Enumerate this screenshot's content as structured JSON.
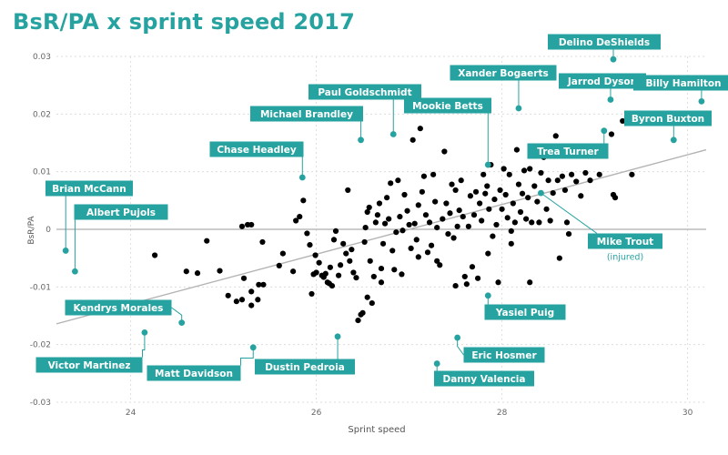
{
  "colors": {
    "accent": "#26a3a0",
    "point": "#000000",
    "trend": "#b3b3b3",
    "zero_line": "#999999",
    "grid": "#dcdcdc"
  },
  "chart_data": {
    "type": "scatter",
    "title": "BsR/PA x sprint speed 2017",
    "xlabel": "Sprint speed",
    "ylabel": "BsR/PA",
    "xlim": [
      23.2,
      30.2
    ],
    "ylim": [
      -0.03,
      0.03
    ],
    "x_ticks": [
      24,
      26,
      28,
      30
    ],
    "y_ticks": [
      {
        "v": 0.03,
        "label": "0.03"
      },
      {
        "v": 0.02,
        "label": "0.02"
      },
      {
        "v": 0.01,
        "label": "0.01"
      },
      {
        "v": 0,
        "label": "0"
      },
      {
        "v": -0.01,
        "label": "-0.01"
      },
      {
        "v": -0.02,
        "label": "-0.02"
      },
      {
        "v": -0.03,
        "label": "-0.03"
      }
    ],
    "grid": true,
    "trendline": {
      "x": [
        23.2,
        30.2
      ],
      "y": [
        -0.0164,
        0.0138
      ]
    },
    "highlighted": [
      {
        "name": "Brian McCann",
        "x": 23.3,
        "y": -0.0037
      },
      {
        "name": "Albert Pujols",
        "x": 23.4,
        "y": -0.0073
      },
      {
        "name": "Kendrys Morales",
        "x": 24.55,
        "y": -0.0162
      },
      {
        "name": "Victor Martinez",
        "x": 24.15,
        "y": -0.0179
      },
      {
        "name": "Matt Davidson",
        "x": 25.32,
        "y": -0.0205
      },
      {
        "name": "Dustin Pedroia",
        "x": 26.23,
        "y": -0.0186
      },
      {
        "name": "Chase Headley",
        "x": 25.85,
        "y": 0.009
      },
      {
        "name": "Michael Brandley",
        "x": 26.48,
        "y": 0.0155
      },
      {
        "name": "Paul Goldschmidt",
        "x": 26.83,
        "y": 0.0165
      },
      {
        "name": "Mookie Betts",
        "x": 27.85,
        "y": 0.0112
      },
      {
        "name": "Xander Bogaerts",
        "x": 28.18,
        "y": 0.021
      },
      {
        "name": "Delino DeShields",
        "x": 29.2,
        "y": 0.0295
      },
      {
        "name": "Jarrod Dyson",
        "x": 29.17,
        "y": 0.0225
      },
      {
        "name": "Billy Hamilton",
        "x": 30.15,
        "y": 0.0222
      },
      {
        "name": "Byron Buxton",
        "x": 29.85,
        "y": 0.0155
      },
      {
        "name": "Trea Turner",
        "x": 29.1,
        "y": 0.0171
      },
      {
        "name": "Mike Trout",
        "note": "(injured)",
        "x": 28.42,
        "y": 0.0063
      },
      {
        "name": "Yasiel Puig",
        "x": 27.85,
        "y": -0.0115
      },
      {
        "name": "Eric Hosmer",
        "x": 27.52,
        "y": -0.0188
      },
      {
        "name": "Danny Valencia",
        "x": 27.3,
        "y": -0.0233
      }
    ],
    "points": [
      [
        24.26,
        -0.0045
      ],
      [
        24.6,
        -0.0073
      ],
      [
        24.72,
        -0.0076
      ],
      [
        24.82,
        -0.002
      ],
      [
        24.96,
        -0.0072
      ],
      [
        25.05,
        -0.0115
      ],
      [
        25.14,
        -0.0125
      ],
      [
        25.2,
        -0.0122
      ],
      [
        25.3,
        -0.0132
      ],
      [
        25.37,
        -0.0122
      ],
      [
        25.22,
        -0.0085
      ],
      [
        25.38,
        -0.0096
      ],
      [
        25.43,
        -0.0096
      ],
      [
        25.3,
        -0.0108
      ],
      [
        25.2,
        0.0005
      ],
      [
        25.26,
        0.0008
      ],
      [
        25.3,
        0.0008
      ],
      [
        25.42,
        -0.0022
      ],
      [
        25.6,
        -0.0063
      ],
      [
        25.64,
        -0.0042
      ],
      [
        25.75,
        -0.0073
      ],
      [
        25.78,
        0.0015
      ],
      [
        25.82,
        0.0022
      ],
      [
        25.86,
        0.005
      ],
      [
        25.9,
        -0.0007
      ],
      [
        25.93,
        -0.0027
      ],
      [
        25.97,
        -0.0078
      ],
      [
        25.99,
        -0.0045
      ],
      [
        26.0,
        -0.0075
      ],
      [
        26.03,
        -0.0058
      ],
      [
        26.06,
        -0.008
      ],
      [
        26.08,
        -0.0083
      ],
      [
        26.1,
        -0.0077
      ],
      [
        26.12,
        -0.0092
      ],
      [
        26.14,
        -0.0094
      ],
      [
        26.15,
        -0.0066
      ],
      [
        26.17,
        -0.0098
      ],
      [
        26.19,
        -0.0018
      ],
      [
        26.21,
        -0.0003
      ],
      [
        26.24,
        -0.008
      ],
      [
        26.26,
        -0.0062
      ],
      [
        26.29,
        -0.0025
      ],
      [
        26.32,
        -0.0042
      ],
      [
        26.34,
        0.0068
      ],
      [
        26.36,
        -0.0055
      ],
      [
        26.38,
        -0.0035
      ],
      [
        26.4,
        -0.0075
      ],
      [
        26.43,
        -0.0084
      ],
      [
        26.45,
        -0.0158
      ],
      [
        26.48,
        -0.0148
      ],
      [
        26.5,
        -0.0145
      ],
      [
        26.52,
        -0.0022
      ],
      [
        26.53,
        0.0003
      ],
      [
        26.55,
        0.003
      ],
      [
        26.57,
        0.0038
      ],
      [
        26.58,
        -0.0055
      ],
      [
        26.6,
        -0.0128
      ],
      [
        26.62,
        -0.0082
      ],
      [
        26.64,
        0.0012
      ],
      [
        26.66,
        0.0025
      ],
      [
        26.68,
        0.0045
      ],
      [
        26.7,
        -0.0068
      ],
      [
        26.72,
        -0.0025
      ],
      [
        26.74,
        0.001
      ],
      [
        26.76,
        0.0055
      ],
      [
        26.78,
        0.0018
      ],
      [
        26.8,
        0.008
      ],
      [
        26.82,
        -0.0037
      ],
      [
        26.84,
        -0.007
      ],
      [
        26.86,
        -0.0005
      ],
      [
        26.88,
        0.0085
      ],
      [
        26.9,
        0.0022
      ],
      [
        26.93,
        -0.0002
      ],
      [
        26.95,
        0.006
      ],
      [
        26.98,
        0.0032
      ],
      [
        27.0,
        0.0008
      ],
      [
        27.02,
        -0.0033
      ],
      [
        27.04,
        0.0155
      ],
      [
        27.06,
        0.001
      ],
      [
        27.08,
        -0.0018
      ],
      [
        27.1,
        0.0042
      ],
      [
        27.12,
        0.0175
      ],
      [
        27.14,
        0.0065
      ],
      [
        27.16,
        0.0092
      ],
      [
        27.18,
        0.0025
      ],
      [
        27.2,
        -0.004
      ],
      [
        27.22,
        0.0012
      ],
      [
        27.24,
        -0.0028
      ],
      [
        27.26,
        0.0095
      ],
      [
        27.28,
        0.0048
      ],
      [
        27.3,
        0.0003
      ],
      [
        27.33,
        -0.0062
      ],
      [
        27.36,
        0.0018
      ],
      [
        27.38,
        0.0135
      ],
      [
        27.4,
        0.0045
      ],
      [
        27.42,
        -0.0008
      ],
      [
        27.44,
        0.0028
      ],
      [
        27.46,
        0.0078
      ],
      [
        27.48,
        -0.0015
      ],
      [
        27.5,
        0.0068
      ],
      [
        27.52,
        0.0005
      ],
      [
        27.54,
        0.0033
      ],
      [
        27.56,
        0.0085
      ],
      [
        27.58,
        0.0022
      ],
      [
        27.6,
        -0.0082
      ],
      [
        27.62,
        -0.0095
      ],
      [
        27.64,
        0.0005
      ],
      [
        27.66,
        0.0058
      ],
      [
        27.68,
        -0.0065
      ],
      [
        27.7,
        0.0025
      ],
      [
        27.72,
        0.0065
      ],
      [
        27.74,
        -0.0085
      ],
      [
        27.76,
        0.0045
      ],
      [
        27.78,
        0.0015
      ],
      [
        27.8,
        0.0095
      ],
      [
        27.82,
        0.0062
      ],
      [
        27.84,
        0.0075
      ],
      [
        27.86,
        0.0035
      ],
      [
        27.88,
        0.0112
      ],
      [
        27.9,
        -0.0012
      ],
      [
        27.92,
        0.0052
      ],
      [
        27.94,
        0.0008
      ],
      [
        27.96,
        -0.0092
      ],
      [
        27.98,
        0.0068
      ],
      [
        28.0,
        0.0035
      ],
      [
        28.02,
        0.0105
      ],
      [
        28.04,
        0.006
      ],
      [
        28.06,
        0.002
      ],
      [
        28.08,
        0.0095
      ],
      [
        28.1,
        -0.0003
      ],
      [
        28.12,
        0.0045
      ],
      [
        28.14,
        0.0012
      ],
      [
        28.16,
        0.0138
      ],
      [
        28.18,
        0.0078
      ],
      [
        28.2,
        0.003
      ],
      [
        28.22,
        0.0062
      ],
      [
        28.24,
        0.0102
      ],
      [
        28.26,
        0.0018
      ],
      [
        28.28,
        0.0055
      ],
      [
        28.3,
        0.0105
      ],
      [
        28.32,
        0.0012
      ],
      [
        28.35,
        0.0075
      ],
      [
        28.38,
        0.0048
      ],
      [
        28.4,
        0.0012
      ],
      [
        28.42,
        0.0098
      ],
      [
        28.45,
        0.0125
      ],
      [
        28.48,
        0.0035
      ],
      [
        28.5,
        0.0085
      ],
      [
        28.52,
        0.0015
      ],
      [
        28.55,
        0.0063
      ],
      [
        28.58,
        0.0162
      ],
      [
        28.6,
        0.0085
      ],
      [
        28.62,
        -0.005
      ],
      [
        28.65,
        0.0092
      ],
      [
        28.68,
        0.0068
      ],
      [
        28.7,
        0.0012
      ],
      [
        28.72,
        -0.0008
      ],
      [
        28.75,
        0.0095
      ],
      [
        28.8,
        0.0083
      ],
      [
        28.85,
        0.0058
      ],
      [
        28.9,
        0.0098
      ],
      [
        28.95,
        0.0085
      ],
      [
        29.05,
        0.0095
      ],
      [
        29.1,
        0.0128
      ],
      [
        29.18,
        0.0165
      ],
      [
        29.2,
        0.006
      ],
      [
        29.22,
        0.0055
      ],
      [
        29.3,
        0.0188
      ],
      [
        29.4,
        0.0095
      ],
      [
        28.3,
        -0.0092
      ],
      [
        27.1,
        -0.0048
      ],
      [
        26.92,
        -0.0078
      ],
      [
        27.5,
        -0.0098
      ],
      [
        27.3,
        -0.0055
      ],
      [
        26.55,
        -0.0118
      ],
      [
        25.95,
        -0.0112
      ],
      [
        26.7,
        -0.0092
      ],
      [
        27.85,
        -0.0042
      ],
      [
        28.1,
        -0.0025
      ]
    ]
  }
}
